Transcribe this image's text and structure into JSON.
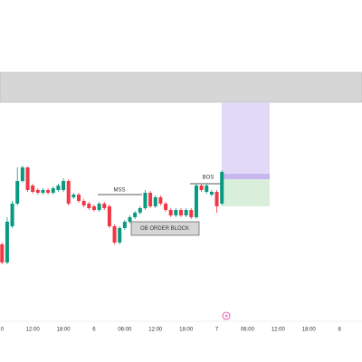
{
  "chart_data": {
    "type": "candlestick",
    "x": [
      6,
      7,
      8,
      9,
      10,
      11,
      12,
      13,
      14,
      15,
      16,
      17,
      18,
      19,
      20,
      21,
      22,
      23,
      24,
      25,
      26,
      27,
      28,
      29,
      30,
      31,
      32,
      33,
      34,
      35,
      36,
      37,
      38,
      39,
      40,
      41,
      42,
      43,
      44,
      45,
      46,
      47,
      48,
      49
    ],
    "open": [
      130,
      110,
      150,
      175,
      200,
      215,
      195,
      190,
      187,
      190,
      187,
      190,
      190,
      200,
      182,
      185,
      178,
      175,
      172,
      168,
      175,
      172,
      150,
      132,
      148,
      155,
      160,
      165,
      170,
      187,
      172,
      182,
      175,
      168,
      162,
      168,
      162,
      168,
      160,
      195,
      188,
      185,
      188,
      175
    ],
    "close": [
      110,
      155,
      175,
      200,
      215,
      190,
      188,
      187,
      190,
      187,
      192,
      195,
      200,
      175,
      185,
      178,
      173,
      170,
      168,
      175,
      170,
      150,
      132,
      148,
      155,
      160,
      165,
      170,
      187,
      172,
      182,
      175,
      168,
      162,
      168,
      162,
      168,
      160,
      195,
      190,
      195,
      188,
      172,
      210
    ],
    "high": [
      132,
      160,
      178,
      215,
      217,
      216,
      197,
      192,
      192,
      192,
      194,
      197,
      203,
      202,
      187,
      187,
      180,
      177,
      174,
      177,
      177,
      174,
      152,
      150,
      157,
      162,
      167,
      172,
      190,
      189,
      184,
      184,
      177,
      170,
      170,
      170,
      170,
      170,
      197,
      197,
      197,
      190,
      190,
      212
    ],
    "low": [
      108,
      108,
      148,
      173,
      198,
      188,
      186,
      185,
      185,
      185,
      185,
      188,
      188,
      173,
      180,
      176,
      171,
      168,
      166,
      166,
      168,
      148,
      130,
      130,
      146,
      153,
      158,
      163,
      168,
      170,
      170,
      173,
      166,
      160,
      160,
      160,
      160,
      158,
      158,
      188,
      186,
      183,
      165,
      173
    ],
    "up_color": "#089981",
    "down_color": "#f23645",
    "xlim": [
      5.6,
      76.4
    ],
    "ylim": [
      0,
      400
    ],
    "xticks": [
      {
        "value": 6,
        "label": "0"
      },
      {
        "value": 12,
        "label": "12:00"
      },
      {
        "value": 18,
        "label": "18:00"
      },
      {
        "value": 24,
        "label": "6"
      },
      {
        "value": 30,
        "label": "06:00"
      },
      {
        "value": 36,
        "label": "12:00"
      },
      {
        "value": 42,
        "label": "18:00"
      },
      {
        "value": 48,
        "label": "7"
      },
      {
        "value": 54,
        "label": "06:00"
      },
      {
        "value": 60,
        "label": "12:00"
      },
      {
        "value": 66,
        "label": "18:00"
      },
      {
        "value": 72,
        "label": "8"
      }
    ],
    "annotations": [
      "BOS",
      "MSS",
      "OB ORDER BLOCK"
    ]
  }
}
